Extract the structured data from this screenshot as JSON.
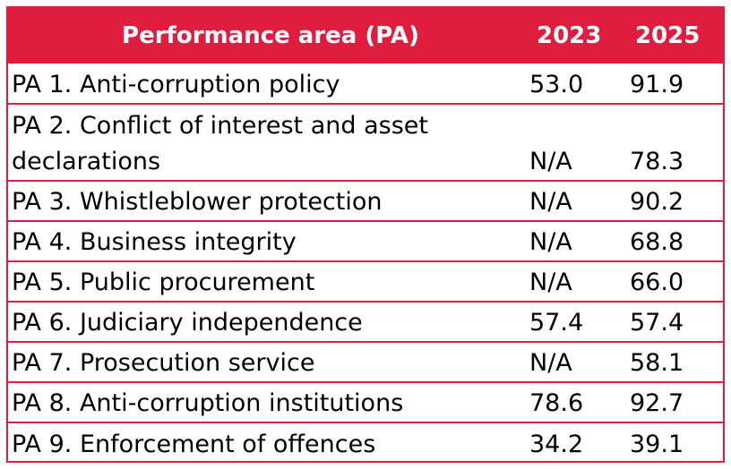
{
  "table": {
    "headers": {
      "name": "Performance area (PA)",
      "y2023": "2023",
      "y2025": "2025"
    },
    "rows": [
      {
        "name": "PA 1. Anti-corruption policy",
        "y2023": "53.0",
        "y2025": "91.9"
      },
      {
        "name_line1": "PA 2. Conflict of interest and asset",
        "name_line2": "declarations",
        "y2023": "N/A",
        "y2025": "78.3"
      },
      {
        "name": "PA 3. Whistleblower protection",
        "y2023": "N/A",
        "y2025": "90.2"
      },
      {
        "name": "PA 4. Business integrity",
        "y2023": "N/A",
        "y2025": "68.8"
      },
      {
        "name": "PA 5. Public procurement",
        "y2023": "N/A",
        "y2025": "66.0"
      },
      {
        "name": "PA 6. Judiciary independence",
        "y2023": "57.4",
        "y2025": "57.4"
      },
      {
        "name": "PA 7. Prosecution service",
        "y2023": "N/A",
        "y2025": "58.1"
      },
      {
        "name": "PA 8. Anti-corruption institutions",
        "y2023": "78.6",
        "y2025": "92.7"
      },
      {
        "name": "PA 9. Enforcement of offences",
        "y2023": "34.2",
        "y2025": "39.1"
      }
    ]
  },
  "colors": {
    "accent": "#e11d3f",
    "header_text": "#ffffff",
    "body_text": "#000000"
  }
}
